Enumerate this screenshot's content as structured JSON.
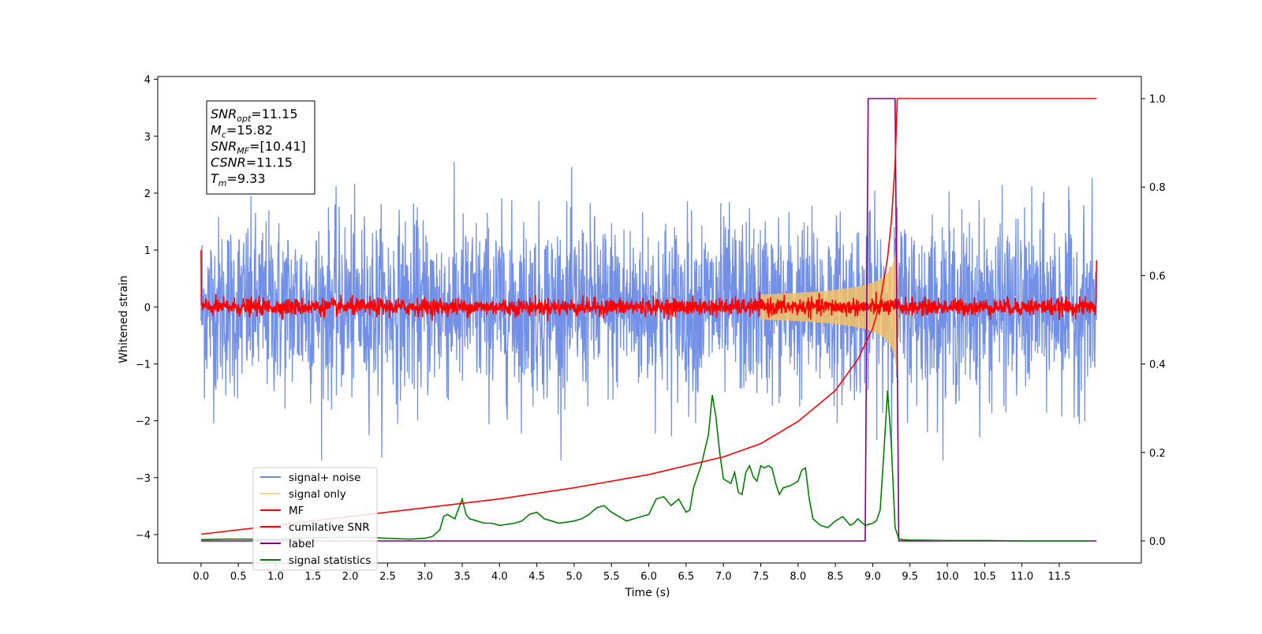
{
  "chart_data": {
    "type": "line",
    "title": "",
    "xlabel": "Time (s)",
    "ylabel": "Whitened strain",
    "y2label": "",
    "xlim": [
      -0.58,
      12.6
    ],
    "ylim": [
      -4.5,
      4.05
    ],
    "y2lim": [
      -0.05,
      1.05
    ],
    "xticks": [
      "0.0",
      "0.5",
      "1.0",
      "1.5",
      "2.0",
      "2.5",
      "3.0",
      "3.5",
      "4.0",
      "4.5",
      "5.0",
      "5.5",
      "6.0",
      "6.5",
      "7.0",
      "7.5",
      "8.0",
      "8.5",
      "9.0",
      "9.5",
      "10.0",
      "10.5",
      "11.0",
      "11.5"
    ],
    "yticks": [
      "4",
      "3",
      "2",
      "1",
      "0",
      "−1",
      "−2",
      "−3",
      "−4"
    ],
    "y2ticks": [
      "0.0",
      "0.2",
      "0.4",
      "0.6",
      "0.8",
      "1.0"
    ],
    "grid": false,
    "legend_position": "lower-left",
    "annotation": [
      {
        "main": "SNR",
        "sub": "opt",
        "rest": "=11.15"
      },
      {
        "main": "M",
        "sub": "c",
        "rest": "=15.82"
      },
      {
        "main": "SNR",
        "sub": "MF",
        "rest": "=[10.41]"
      },
      {
        "main": "CSNR",
        "sub": "",
        "rest": "=11.15"
      },
      {
        "main": "T",
        "sub": "m",
        "rest": "=9.33"
      }
    ],
    "series": [
      {
        "name": "signal+ noise",
        "color": "#6a8ae6",
        "axis": "left",
        "kind": "noise",
        "amplitude_band": [
          -2.6,
          2.6
        ],
        "x_range": [
          0,
          12
        ]
      },
      {
        "name": "signal only",
        "color": "#f5c266",
        "axis": "left",
        "kind": "chirp",
        "peak_time": 9.33,
        "peak_amplitude": 1.5
      },
      {
        "name": "MF",
        "color": "#ff0000",
        "axis": "left",
        "kind": "noise",
        "amplitude_band": [
          -0.25,
          0.3
        ],
        "x_range": [
          0,
          12
        ]
      },
      {
        "name": "cumilative SNR",
        "color": "#ff0000",
        "axis": "right",
        "x": [
          0.0,
          1.0,
          2.0,
          3.0,
          4.0,
          5.0,
          6.0,
          7.0,
          7.5,
          8.0,
          8.5,
          8.8,
          9.0,
          9.1,
          9.2,
          9.25,
          9.3,
          9.33,
          9.35,
          12.0
        ],
        "y": [
          0.015,
          0.035,
          0.055,
          0.075,
          0.095,
          0.12,
          0.15,
          0.19,
          0.22,
          0.27,
          0.34,
          0.41,
          0.48,
          0.54,
          0.64,
          0.72,
          0.85,
          1.0,
          1.0,
          1.0
        ]
      },
      {
        "name": "label",
        "color": "#800080",
        "axis": "right",
        "x": [
          0.0,
          8.9,
          8.94,
          9.3,
          9.35,
          12.0
        ],
        "y": [
          0.0,
          0.0,
          1.0,
          1.0,
          0.0,
          0.0
        ]
      },
      {
        "name": "signal statistics",
        "color": "#008000",
        "axis": "right",
        "x": [
          0.0,
          0.3,
          0.6,
          1.0,
          1.4,
          1.8,
          2.2,
          2.5,
          2.8,
          3.0,
          3.1,
          3.2,
          3.25,
          3.3,
          3.4,
          3.5,
          3.55,
          3.6,
          3.7,
          3.8,
          3.9,
          4.0,
          4.2,
          4.3,
          4.4,
          4.5,
          4.6,
          4.7,
          4.8,
          5.0,
          5.1,
          5.2,
          5.3,
          5.4,
          5.5,
          5.6,
          5.7,
          5.8,
          5.9,
          6.0,
          6.1,
          6.2,
          6.25,
          6.3,
          6.4,
          6.5,
          6.55,
          6.6,
          6.7,
          6.8,
          6.85,
          6.9,
          6.95,
          7.0,
          7.05,
          7.1,
          7.15,
          7.2,
          7.25,
          7.3,
          7.35,
          7.4,
          7.45,
          7.5,
          7.55,
          7.6,
          7.65,
          7.7,
          7.75,
          7.8,
          7.9,
          8.0,
          8.05,
          8.1,
          8.15,
          8.2,
          8.3,
          8.4,
          8.5,
          8.55,
          8.6,
          8.7,
          8.75,
          8.8,
          8.9,
          9.0,
          9.05,
          9.1,
          9.15,
          9.2,
          9.25,
          9.3,
          9.35,
          9.4,
          9.5,
          10.0,
          10.5,
          11.0,
          11.5,
          11.9
        ],
        "y": [
          0.003,
          0.004,
          0.004,
          0.003,
          0.007,
          0.008,
          0.008,
          0.006,
          0.004,
          0.006,
          0.01,
          0.025,
          0.055,
          0.06,
          0.05,
          0.095,
          0.06,
          0.05,
          0.045,
          0.04,
          0.04,
          0.035,
          0.04,
          0.045,
          0.06,
          0.065,
          0.05,
          0.045,
          0.04,
          0.045,
          0.05,
          0.06,
          0.075,
          0.08,
          0.065,
          0.055,
          0.045,
          0.05,
          0.055,
          0.06,
          0.095,
          0.1,
          0.09,
          0.08,
          0.095,
          0.065,
          0.07,
          0.12,
          0.17,
          0.24,
          0.33,
          0.28,
          0.2,
          0.14,
          0.135,
          0.13,
          0.155,
          0.11,
          0.105,
          0.155,
          0.17,
          0.145,
          0.135,
          0.17,
          0.165,
          0.17,
          0.165,
          0.13,
          0.105,
          0.12,
          0.125,
          0.135,
          0.16,
          0.165,
          0.095,
          0.05,
          0.035,
          0.03,
          0.045,
          0.05,
          0.055,
          0.035,
          0.04,
          0.05,
          0.035,
          0.04,
          0.045,
          0.07,
          0.2,
          0.34,
          0.22,
          0.03,
          0.005,
          0.003,
          0.002,
          0.001,
          0.001,
          0.0,
          0.0,
          0.0
        ]
      }
    ]
  }
}
